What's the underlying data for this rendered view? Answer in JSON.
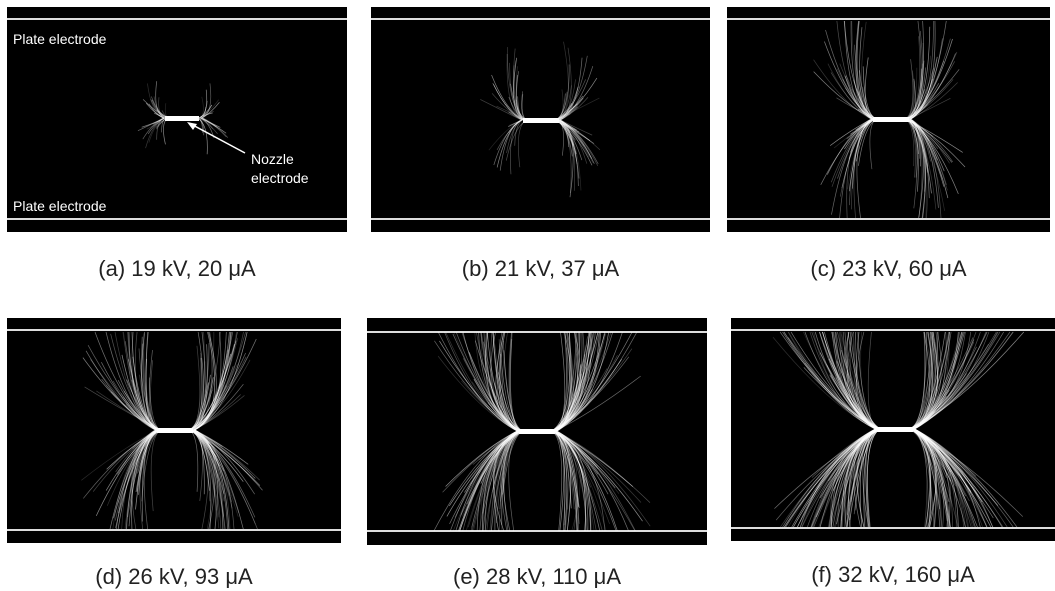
{
  "panels": [
    {
      "caption": "(a) 19 kV, 20 μA",
      "plate_top": "Plate electrode",
      "plate_bottom": "Plate electrode",
      "nozzle": [
        "Nozzle",
        "electrode"
      ]
    },
    {
      "caption": "(b) 21 kV, 37 μA"
    },
    {
      "caption": "(c) 23 kV, 60 μA"
    },
    {
      "caption": "(d) 26 kV, 93 μA"
    },
    {
      "caption": "(e) 28 kV, 110 μA"
    },
    {
      "caption": "(f) 32 kV, 160 μA"
    }
  ]
}
